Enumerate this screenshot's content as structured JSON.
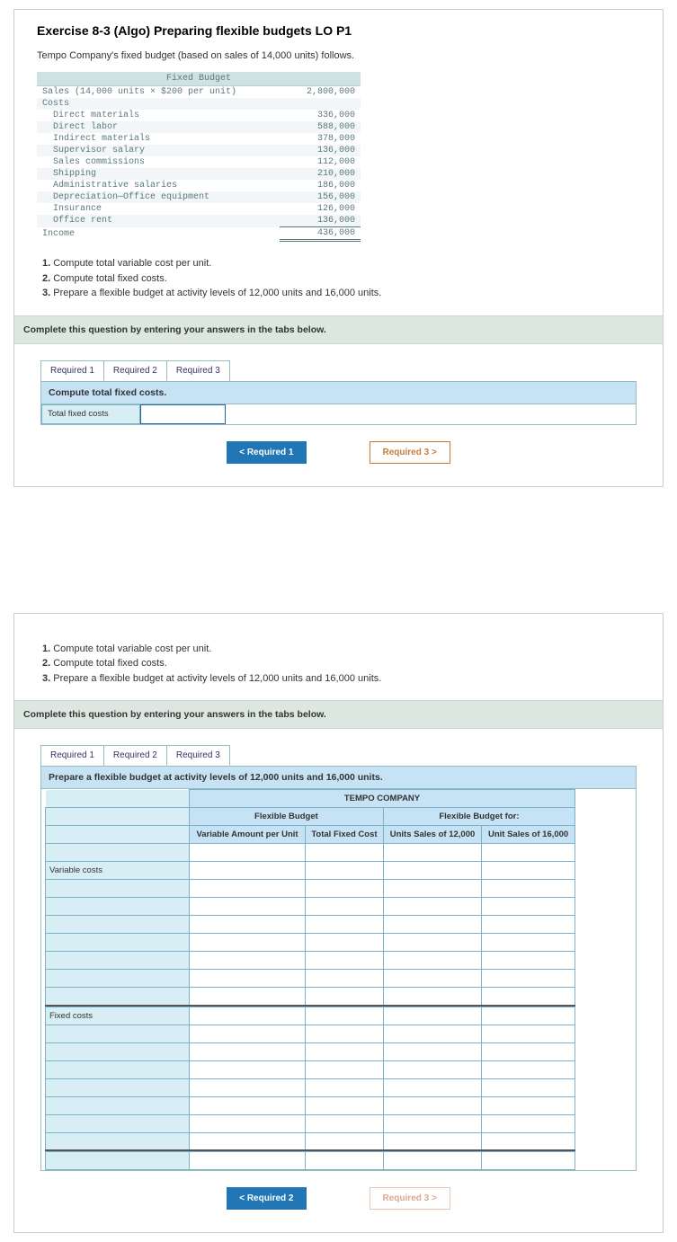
{
  "exercise": {
    "title": "Exercise 8-3 (Algo) Preparing flexible budgets LO P1",
    "intro": "Tempo Company's fixed budget (based on sales of 14,000 units) follows."
  },
  "fixed_budget": {
    "header": "Fixed Budget",
    "rows": [
      {
        "label": "Sales (14,000 units × $200 per unit)",
        "amount": "2,800,000",
        "indent": false
      },
      {
        "label": "Costs",
        "amount": "",
        "indent": false
      },
      {
        "label": "Direct materials",
        "amount": "336,000",
        "indent": true
      },
      {
        "label": "Direct labor",
        "amount": "588,000",
        "indent": true
      },
      {
        "label": "Indirect materials",
        "amount": "378,000",
        "indent": true
      },
      {
        "label": "Supervisor salary",
        "amount": "136,000",
        "indent": true
      },
      {
        "label": "Sales commissions",
        "amount": "112,000",
        "indent": true
      },
      {
        "label": "Shipping",
        "amount": "210,000",
        "indent": true
      },
      {
        "label": "Administrative salaries",
        "amount": "186,000",
        "indent": true
      },
      {
        "label": "Depreciation—Office equipment",
        "amount": "156,000",
        "indent": true
      },
      {
        "label": "Insurance",
        "amount": "126,000",
        "indent": true
      },
      {
        "label": "Office rent",
        "amount": "136,000",
        "indent": true,
        "underline": true
      },
      {
        "label": "Income",
        "amount": "436,000",
        "indent": false,
        "dbl": true
      }
    ]
  },
  "tasks": [
    {
      "num": "1.",
      "text": "Compute total variable cost per unit."
    },
    {
      "num": "2.",
      "text": "Compute total fixed costs."
    },
    {
      "num": "3.",
      "text": "Prepare a flexible budget at activity levels of 12,000 units and 16,000 units."
    }
  ],
  "tabstrip_instruction": "Complete this question by entering your answers in the tabs below.",
  "tabs": {
    "t1": "Required 1",
    "t2": "Required 2",
    "t3": "Required 3"
  },
  "panel1": {
    "tab_header": "Compute total fixed costs.",
    "row_label": "Total fixed costs",
    "nav_prev": "Required 1",
    "nav_next": "Required 3"
  },
  "panel2": {
    "tab_header": "Prepare a flexible budget at activity levels of 12,000 units and 16,000 units.",
    "company": "TEMPO COMPANY",
    "headers": {
      "flex_budget": "Flexible Budget",
      "flex_budget_for": "Flexible Budget for:",
      "var_amt": "Variable Amount per Unit",
      "total_fixed": "Total Fixed Cost",
      "units12": "Units Sales of 12,000",
      "units16": "Unit Sales of 16,000"
    },
    "row_labels": {
      "variable_costs": "Variable costs",
      "fixed_costs": "Fixed costs"
    },
    "nav_prev": "Required 2",
    "nav_next": "Required 3"
  },
  "colors": {
    "nav_blue": "#2176b5",
    "outline_orange": "#c77b3b",
    "tab_border": "#99bbbb",
    "header_band": "#dbe7e0",
    "work_header": "#c6e2f5",
    "work_label": "#d8eef5"
  }
}
